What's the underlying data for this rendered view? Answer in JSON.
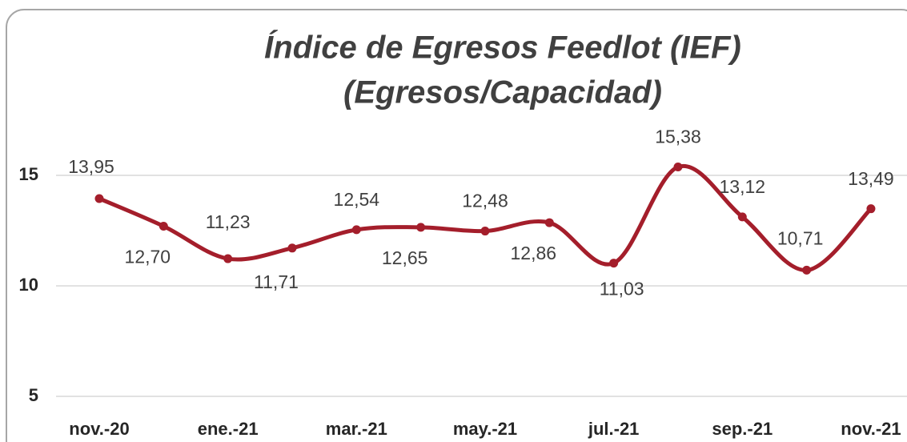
{
  "chart_data": {
    "type": "line",
    "title": "Índice de Egresos Feedlot (IEF)",
    "subtitle": "(Egresos/Capacidad)",
    "categories": [
      "nov.-20",
      null,
      "ene.-21",
      null,
      "mar.-21",
      null,
      "may.-21",
      null,
      "jul.-21",
      null,
      "sep.-21",
      null,
      "nov.-21"
    ],
    "series": [
      {
        "name": "IEF",
        "color": "#a41e2b",
        "values": [
          13.95,
          12.7,
          11.23,
          11.71,
          12.54,
          12.65,
          12.48,
          12.86,
          11.03,
          15.38,
          13.12,
          10.71,
          13.49
        ],
        "value_labels": [
          "13,95",
          "12,70",
          "11,23",
          "11,71",
          "12,54",
          "12,65",
          "12,48",
          "12,86",
          "11,03",
          "15,38",
          "13,12",
          "10,71",
          "13,49"
        ]
      }
    ],
    "ylim": [
      4,
      17
    ],
    "yticks": [
      5,
      10,
      15
    ],
    "grid": true,
    "smooth": true
  }
}
